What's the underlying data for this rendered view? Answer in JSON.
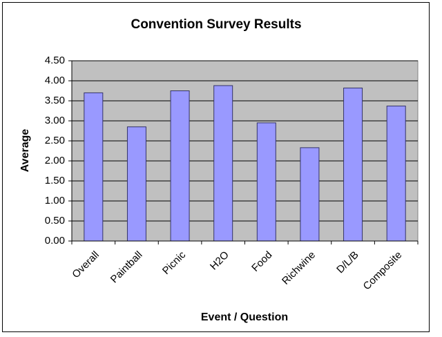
{
  "chart_data": {
    "type": "bar",
    "title": "Convention Survey Results",
    "x_label": "Event / Question",
    "y_label": "Average",
    "categories": [
      "Overall",
      "Paintball",
      "Picnic",
      "H2O",
      "Food",
      "Richwine",
      "D/L/B",
      "Composite"
    ],
    "values": [
      3.7,
      2.85,
      3.75,
      3.88,
      2.95,
      2.33,
      3.82,
      3.37
    ],
    "color": "#9999ff",
    "ylim": [
      0,
      4.5
    ],
    "yticks": [
      {
        "value": 0,
        "label": "0.00"
      },
      {
        "value": 0.5,
        "label": "0.50"
      },
      {
        "value": 1,
        "label": "1.00"
      },
      {
        "value": 1.5,
        "label": "1.50"
      },
      {
        "value": 2,
        "label": "2.00"
      },
      {
        "value": 2.5,
        "label": "2.50"
      },
      {
        "value": 3,
        "label": "3.00"
      },
      {
        "value": 3.5,
        "label": "3.50"
      },
      {
        "value": 4,
        "label": "4.00"
      },
      {
        "value": 4.5,
        "label": "4.50"
      }
    ],
    "grid": true
  }
}
